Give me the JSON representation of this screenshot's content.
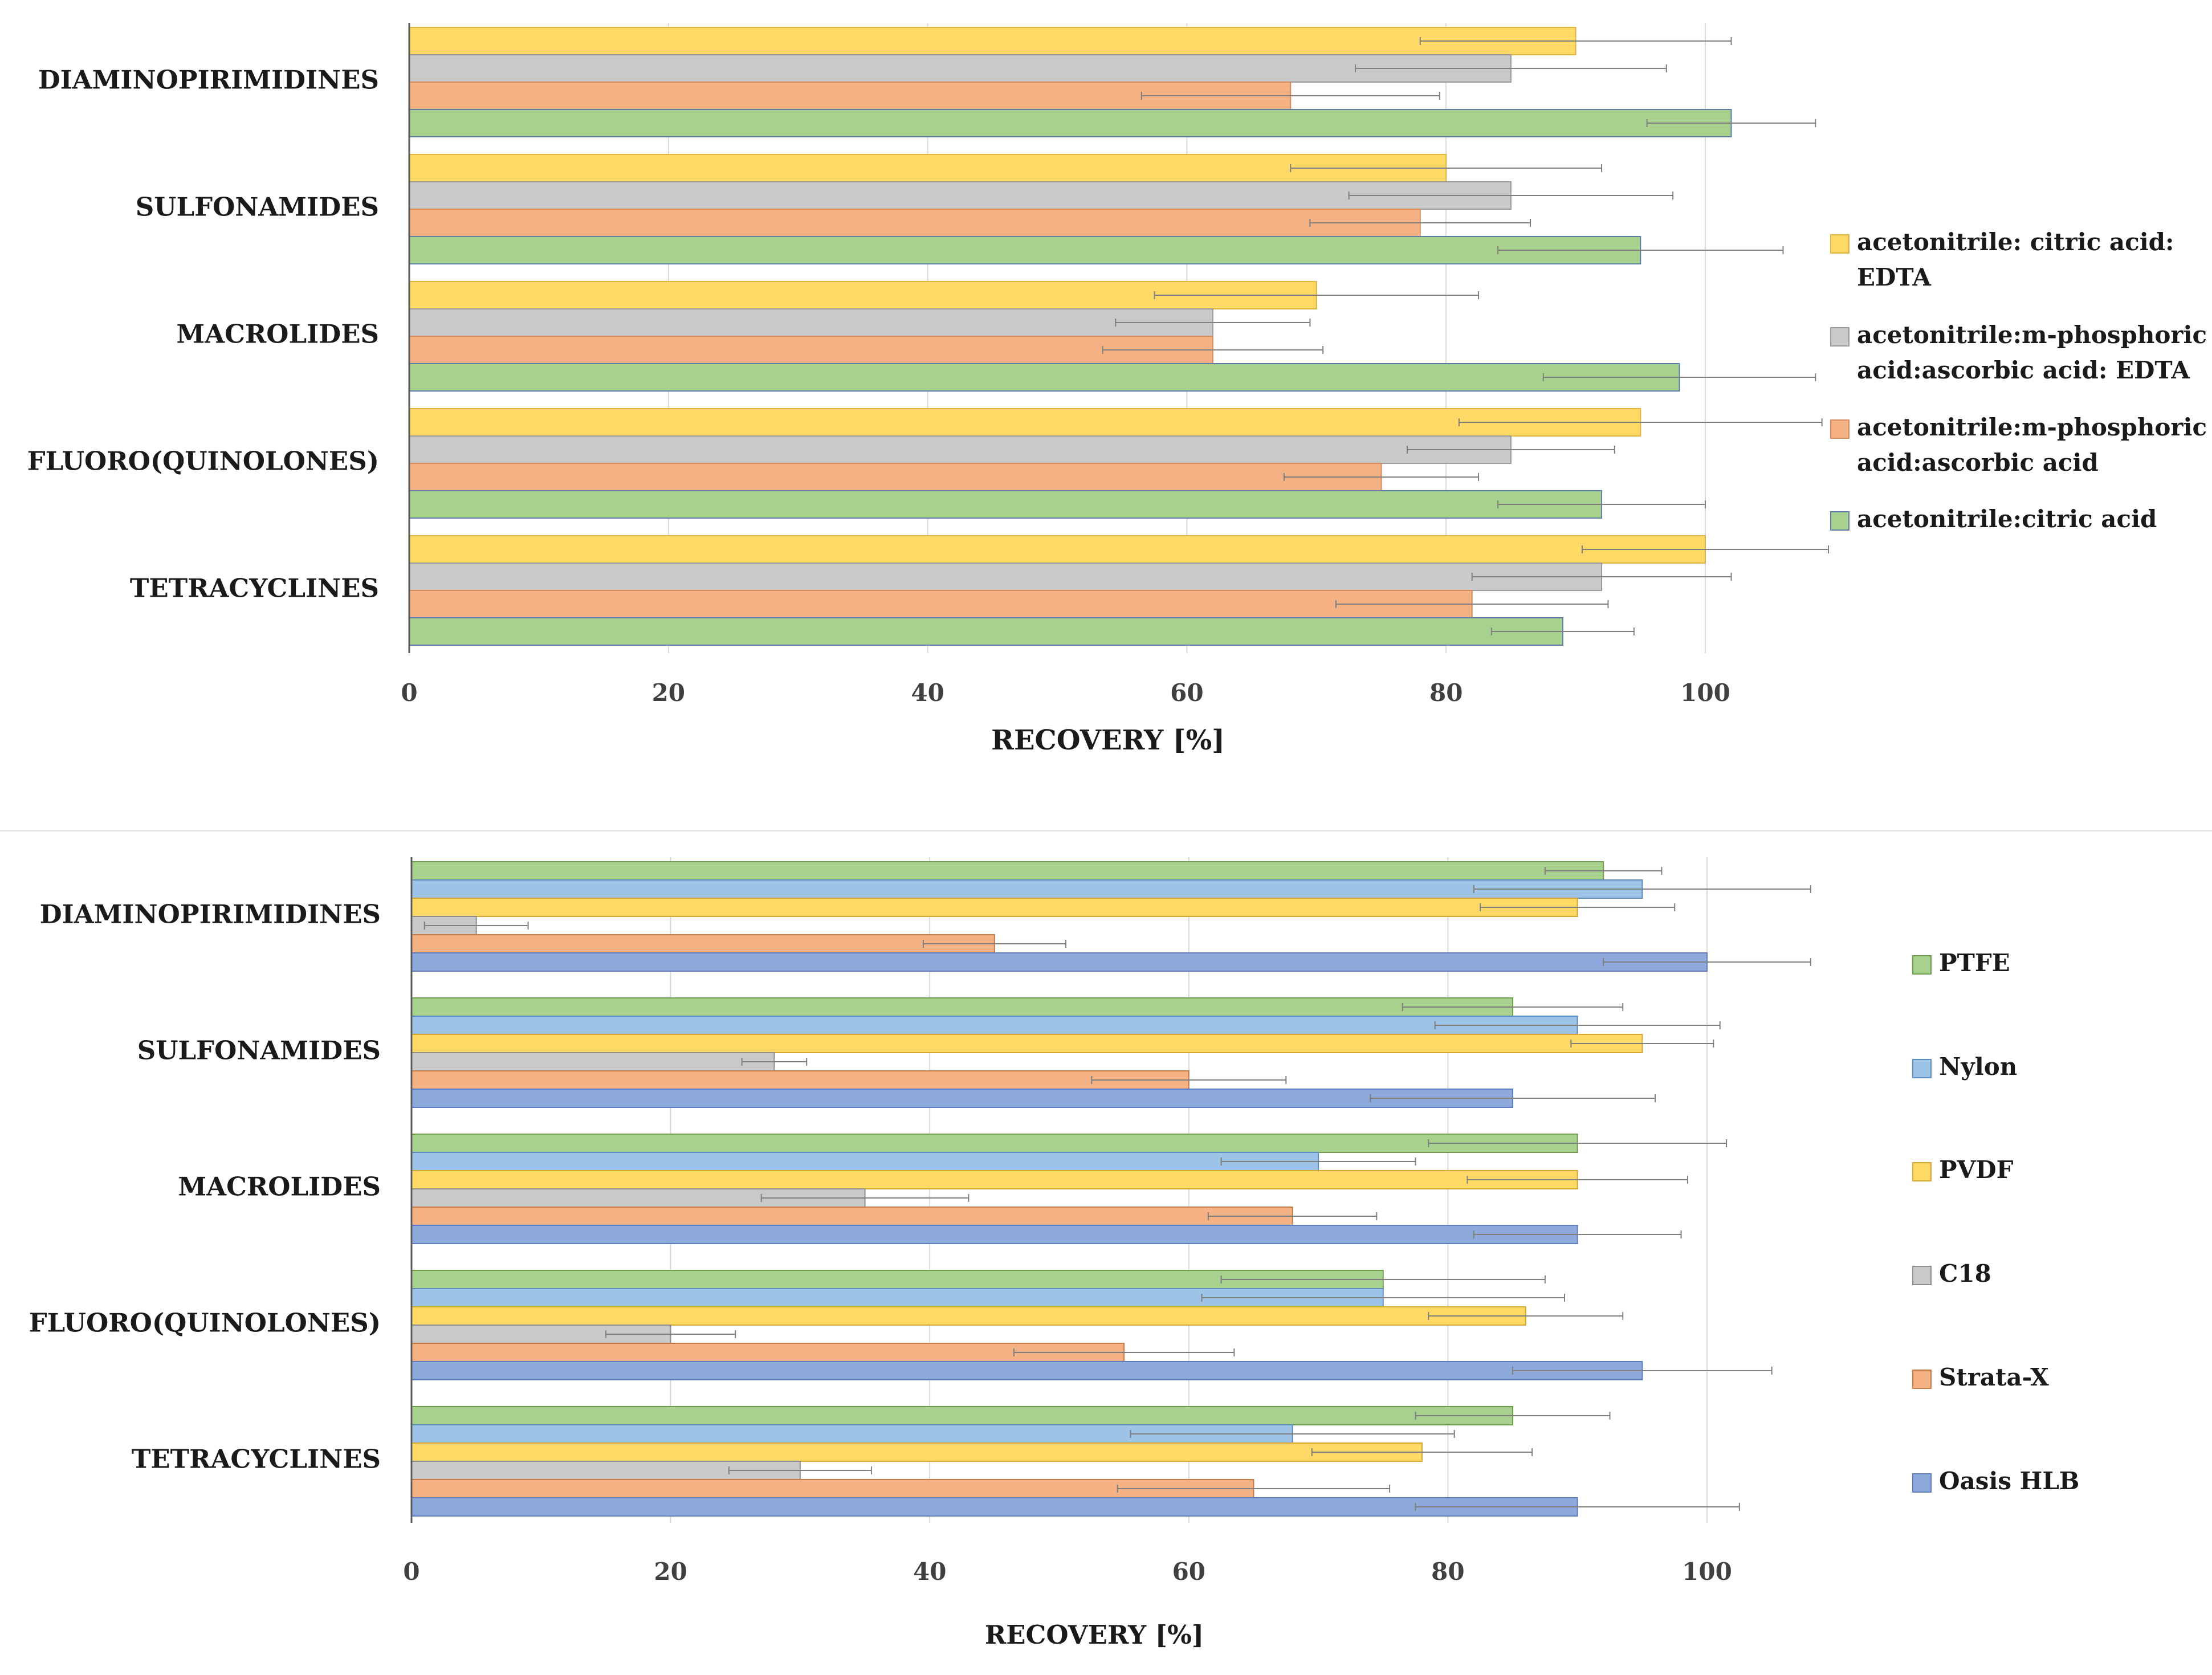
{
  "chart_data": [
    {
      "type": "bar",
      "orientation": "horizontal",
      "title": "",
      "xlabel": "RECOVERY [%]",
      "ylabel": "",
      "xlim": [
        0,
        100
      ],
      "xticks": [
        0,
        20,
        40,
        60,
        80,
        100
      ],
      "grid": true,
      "legend_position": "right",
      "categories": [
        "DIAMINOPIRIMIDINES",
        "SULFONAMIDES",
        "MACROLIDES",
        "FLUORO(QUINOLONES)",
        "TETRACYCLINES"
      ],
      "series": [
        {
          "name": "acetonitrile: citric acid: EDTA",
          "legend_lines": [
            "acetonitrile: citric acid:",
            "EDTA"
          ],
          "color": "#FFD966",
          "stroke": "#E0B43A",
          "values": [
            90,
            80,
            70,
            95,
            100
          ],
          "errors": [
            12,
            12,
            12.5,
            14,
            9.5
          ]
        },
        {
          "name": "acetonitrile:m-phosphoric acid:ascorbic acid: EDTA",
          "legend_lines": [
            "acetonitrile:m-phosphoric",
            "acid:ascorbic acid: EDTA"
          ],
          "color": "#C9C9C9",
          "stroke": "#9A9A9A",
          "values": [
            85,
            85,
            62,
            85,
            92
          ],
          "errors": [
            12,
            12.5,
            7.5,
            8,
            10
          ]
        },
        {
          "name": "acetonitrile:m-phosphoric acid:ascorbic acid",
          "legend_lines": [
            "acetonitrile:m-phosphoric",
            "acid:ascorbic acid"
          ],
          "color": "#F4B183",
          "stroke": "#D88A5A",
          "values": [
            68,
            78,
            62,
            75,
            82
          ],
          "errors": [
            11.5,
            8.5,
            8.5,
            7.5,
            10.5
          ]
        },
        {
          "name": "acetonitrile:citric acid",
          "legend_lines": [
            "acetonitrile:citric acid"
          ],
          "color": "#A9D18E",
          "stroke": "#5B7FA8",
          "values": [
            102,
            95,
            98,
            92,
            89
          ],
          "errors": [
            6.5,
            11,
            10.5,
            8,
            5.5
          ]
        }
      ]
    },
    {
      "type": "bar",
      "orientation": "horizontal",
      "title": "",
      "xlabel": "RECOVERY [%]",
      "ylabel": "",
      "xlim": [
        0,
        100
      ],
      "xticks": [
        0,
        20,
        40,
        60,
        80,
        100
      ],
      "grid": true,
      "legend_position": "right",
      "categories": [
        "DIAMINOPIRIMIDINES",
        "SULFONAMIDES",
        "MACROLIDES",
        "FLUORO(QUINOLONES)",
        "TETRACYCLINES"
      ],
      "series": [
        {
          "name": "PTFE",
          "legend_lines": [
            "PTFE"
          ],
          "color": "#A9D18E",
          "stroke": "#6E9E4E",
          "values": [
            92,
            85,
            90,
            75,
            85
          ],
          "errors": [
            4.5,
            8.5,
            11.5,
            12.5,
            7.5
          ]
        },
        {
          "name": "Nylon",
          "legend_lines": [
            "Nylon"
          ],
          "color": "#9DC3E6",
          "stroke": "#5B8DBF",
          "values": [
            95,
            90,
            70,
            75,
            68
          ],
          "errors": [
            13,
            11,
            7.5,
            14,
            12.5
          ]
        },
        {
          "name": "PVDF",
          "legend_lines": [
            "PVDF"
          ],
          "color": "#FFD966",
          "stroke": "#D6A92E",
          "values": [
            90,
            95,
            90,
            86,
            78
          ],
          "errors": [
            7.5,
            5.5,
            8.5,
            7.5,
            8.5
          ]
        },
        {
          "name": "C18",
          "legend_lines": [
            "C18"
          ],
          "color": "#C9C9C9",
          "stroke": "#8E8E8E",
          "values": [
            5,
            28,
            35,
            20,
            30
          ],
          "errors": [
            4,
            2.5,
            8,
            5,
            5.5
          ]
        },
        {
          "name": "Strata-X",
          "legend_lines": [
            "Strata-X"
          ],
          "color": "#F4B183",
          "stroke": "#C97A45",
          "values": [
            45,
            60,
            68,
            55,
            65
          ],
          "errors": [
            5.5,
            7.5,
            6.5,
            8.5,
            10.5
          ]
        },
        {
          "name": "Oasis HLB",
          "legend_lines": [
            "Oasis HLB"
          ],
          "color": "#8EA9DB",
          "stroke": "#5E7FBF",
          "values": [
            100,
            85,
            90,
            95,
            90
          ],
          "errors": [
            8,
            11,
            8,
            10,
            12.5
          ]
        }
      ]
    }
  ]
}
